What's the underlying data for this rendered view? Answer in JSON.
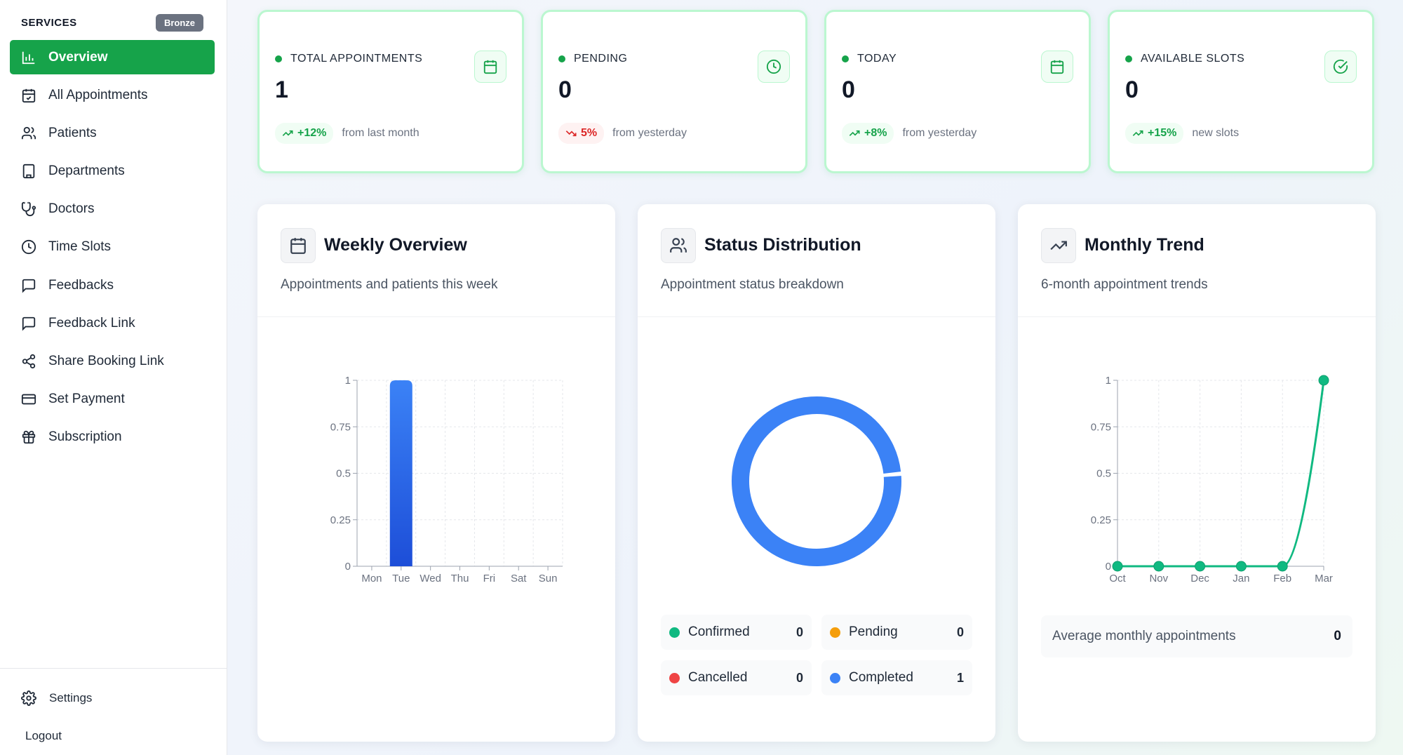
{
  "sidebar": {
    "title": "SERVICES",
    "badge": "Bronze",
    "items": [
      {
        "label": "Overview",
        "icon": "bar-chart-icon"
      },
      {
        "label": "All Appointments",
        "icon": "calendar-check-icon"
      },
      {
        "label": "Patients",
        "icon": "users-icon"
      },
      {
        "label": "Departments",
        "icon": "building-icon"
      },
      {
        "label": "Doctors",
        "icon": "stethoscope-icon"
      },
      {
        "label": "Time Slots",
        "icon": "clock-icon"
      },
      {
        "label": "Feedbacks",
        "icon": "message-square-icon"
      },
      {
        "label": "Feedback Link",
        "icon": "message-square-icon"
      },
      {
        "label": "Share Booking Link",
        "icon": "share-icon"
      },
      {
        "label": "Set Payment",
        "icon": "credit-card-icon"
      },
      {
        "label": "Subscription",
        "icon": "gift-icon"
      }
    ],
    "settings": "Settings",
    "logout": "Logout"
  },
  "stats": [
    {
      "label": "TOTAL APPOINTMENTS",
      "value": "1",
      "trend": "+12%",
      "trend_dir": "up",
      "note": "from last month",
      "icon": "calendar-icon"
    },
    {
      "label": "PENDING",
      "value": "0",
      "trend": "5%",
      "trend_dir": "down",
      "note": "from yesterday",
      "icon": "clock-icon"
    },
    {
      "label": "TODAY",
      "value": "0",
      "trend": "+8%",
      "trend_dir": "up",
      "note": "from yesterday",
      "icon": "calendar-days-icon"
    },
    {
      "label": "AVAILABLE SLOTS",
      "value": "0",
      "trend": "+15%",
      "trend_dir": "up",
      "note": "new slots",
      "icon": "check-circle-icon"
    }
  ],
  "panels": {
    "weekly": {
      "title": "Weekly Overview",
      "subtitle": "Appointments and patients this week"
    },
    "status": {
      "title": "Status Distribution",
      "subtitle": "Appointment status breakdown"
    },
    "monthly": {
      "title": "Monthly Trend",
      "subtitle": "6-month appointment trends"
    }
  },
  "status_legend": [
    {
      "label": "Confirmed",
      "value": "0",
      "color": "#10b981"
    },
    {
      "label": "Pending",
      "value": "0",
      "color": "#f59e0b"
    },
    {
      "label": "Cancelled",
      "value": "0",
      "color": "#ef4444"
    },
    {
      "label": "Completed",
      "value": "1",
      "color": "#3b82f6"
    }
  ],
  "average": {
    "label": "Average monthly appointments",
    "value": "0"
  },
  "colors": {
    "accent": "#16a34a",
    "bar": "#2563eb",
    "line": "#10b981",
    "donut": "#3b82f6"
  },
  "chart_data": [
    {
      "type": "bar",
      "categories": [
        "Mon",
        "Tue",
        "Wed",
        "Thu",
        "Fri",
        "Sat",
        "Sun"
      ],
      "values": [
        0,
        1,
        0,
        0,
        0,
        0,
        0
      ],
      "ylim": [
        0,
        1
      ],
      "yticks": [
        "0",
        "0.25",
        "0.5",
        "0.75",
        "1"
      ],
      "grid": true
    },
    {
      "type": "pie",
      "categories": [
        "Confirmed",
        "Pending",
        "Cancelled",
        "Completed"
      ],
      "values": [
        0,
        0,
        0,
        1
      ]
    },
    {
      "type": "line",
      "categories": [
        "Oct",
        "Nov",
        "Dec",
        "Jan",
        "Feb",
        "Mar"
      ],
      "values": [
        0,
        0,
        0,
        0,
        0,
        1
      ],
      "ylim": [
        0,
        1
      ],
      "yticks": [
        "0",
        "0.25",
        "0.5",
        "0.75",
        "1"
      ],
      "grid": true
    }
  ]
}
